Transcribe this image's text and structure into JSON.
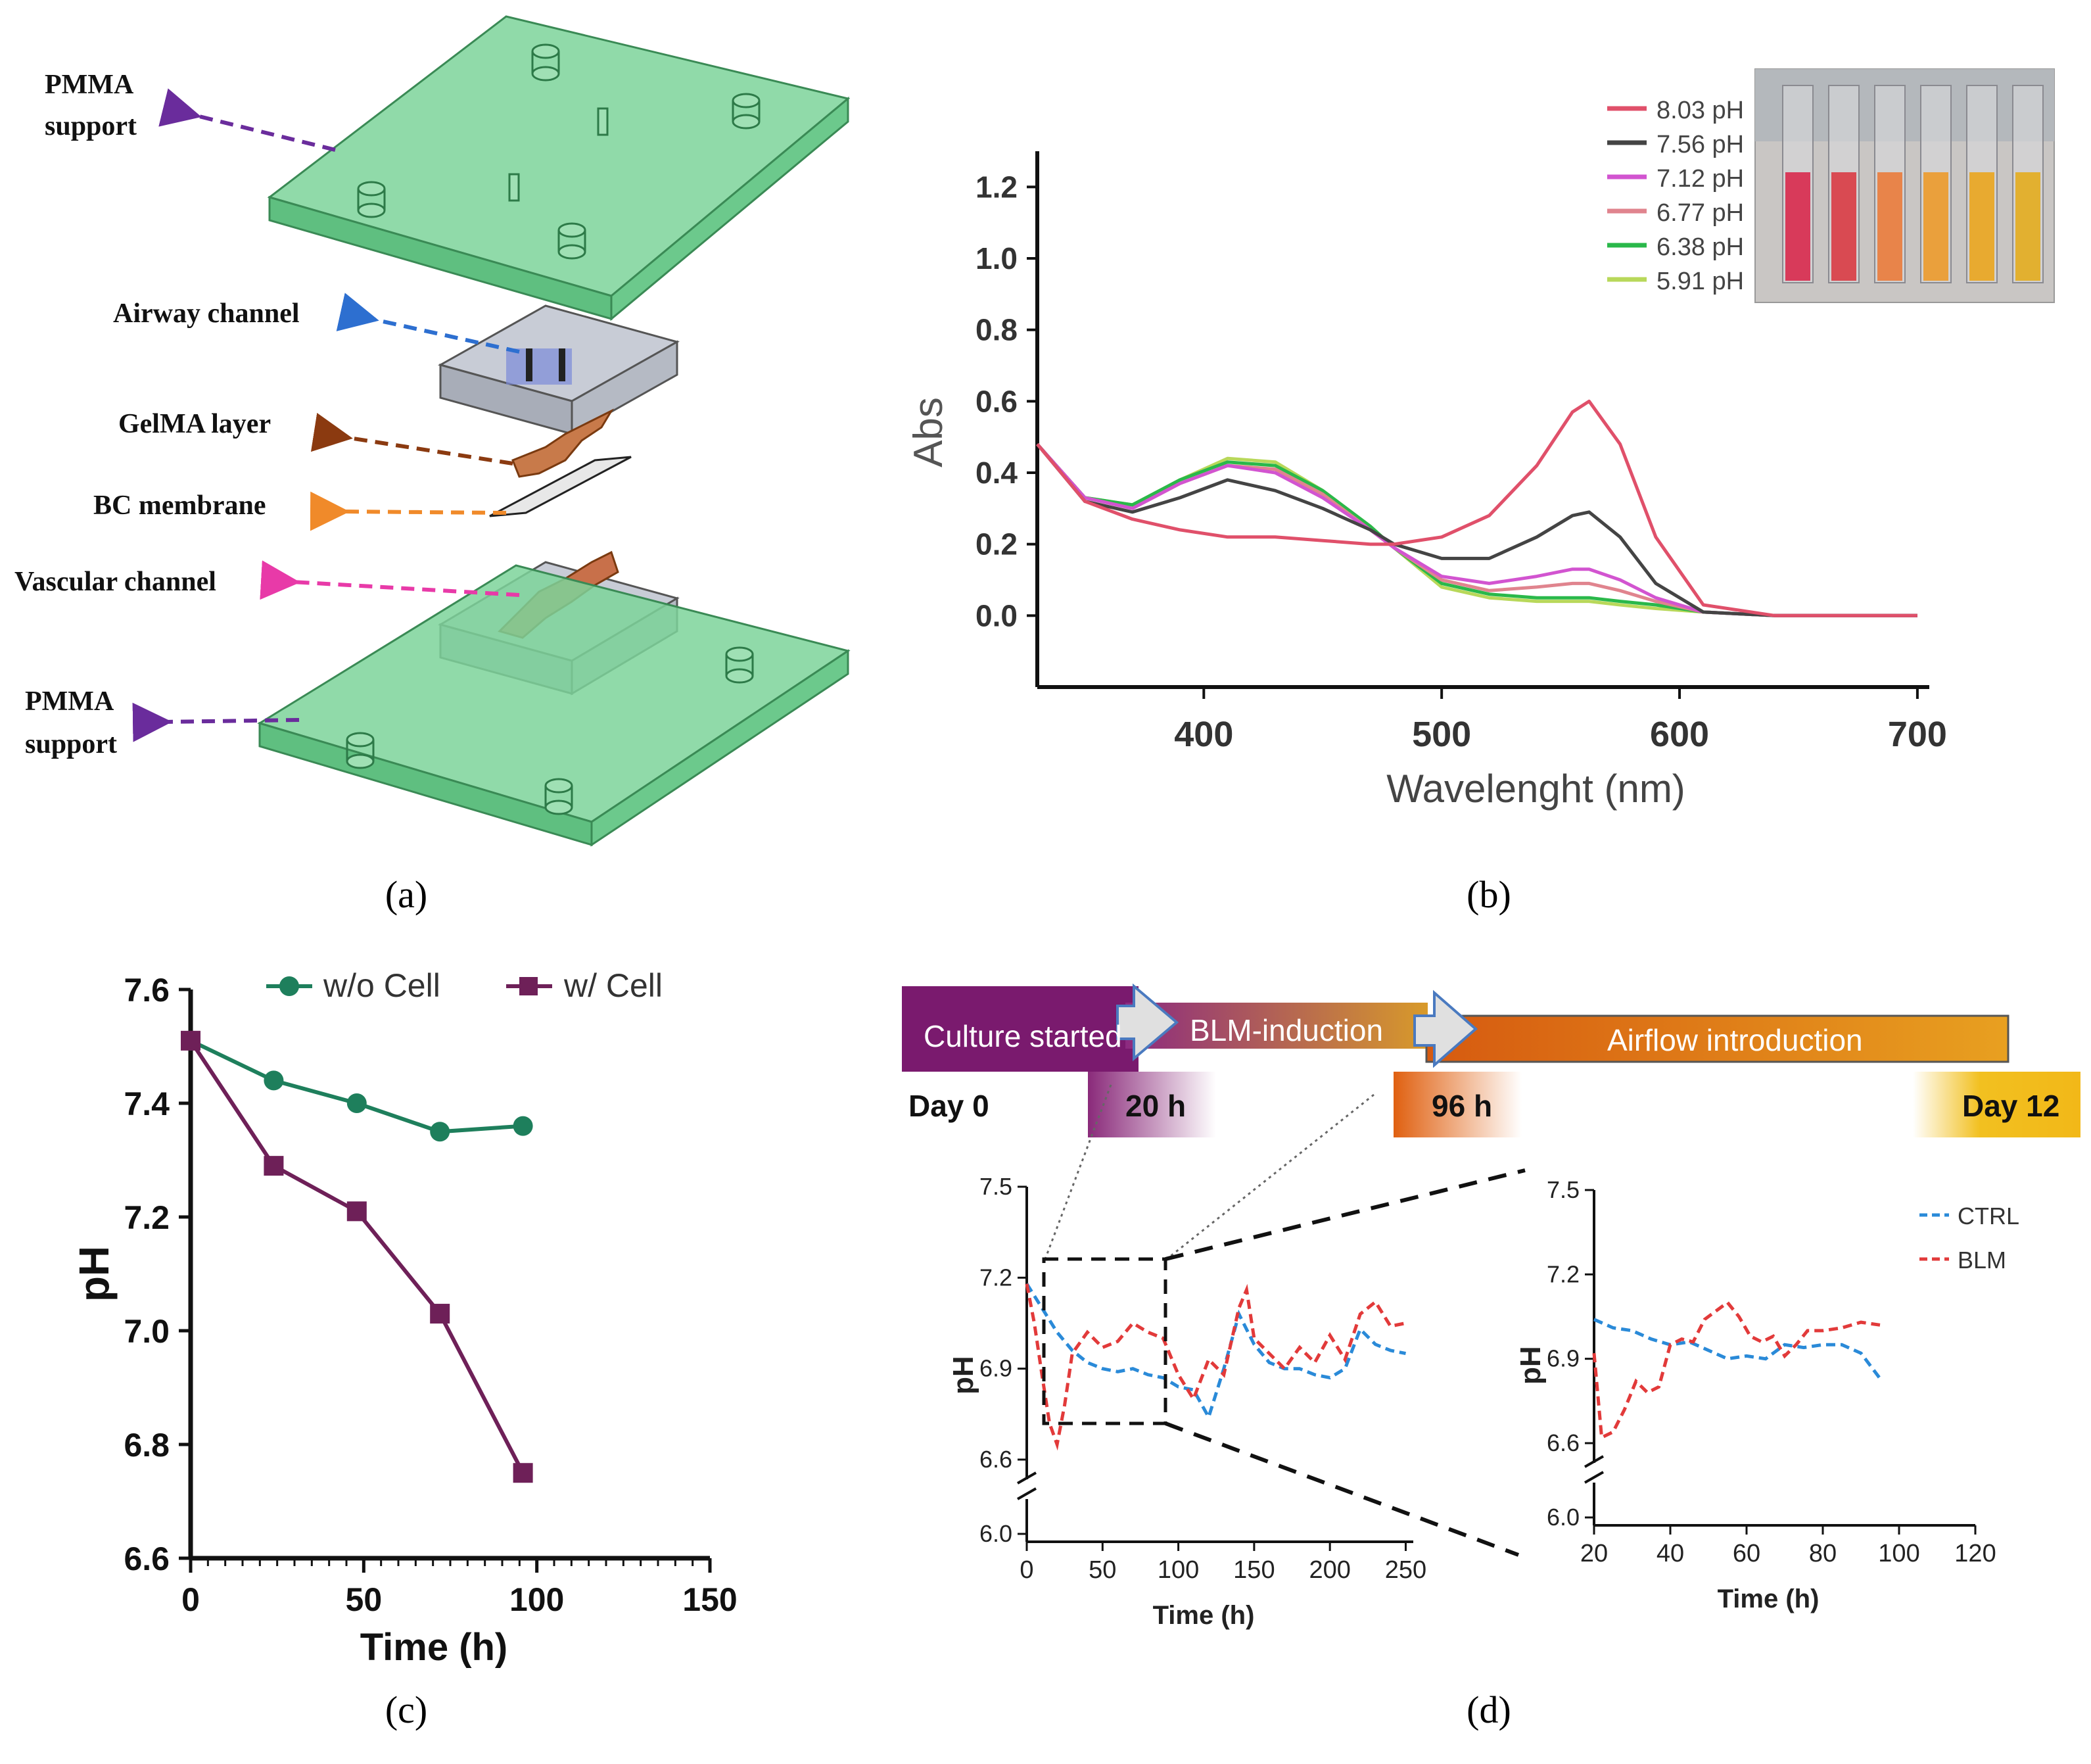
{
  "panel_a": {
    "caption": "(a)",
    "labels": {
      "pmma_top": [
        "PMMA",
        "support"
      ],
      "airway": "Airway  channel",
      "gelma": "GelMA layer",
      "bc": "BC membrane",
      "vascular": "Vascular channel",
      "pmma_bottom": [
        "PMMA",
        "support"
      ]
    },
    "colors": {
      "pmma": "#7dd39a",
      "pmma_arrow": "#6a2c9c",
      "airway_arrow": "#2d6fd0",
      "gelma_arrow": "#8b3a10",
      "bc_arrow": "#f08a2a",
      "vascular_arrow": "#e83aa8"
    }
  },
  "panel_b": {
    "caption": "(b)",
    "chart_data": {
      "type": "line",
      "xlabel": "Wavelenght (nm)",
      "ylabel": "Abs",
      "xlim": [
        330,
        705
      ],
      "ylim": [
        -0.2,
        1.3
      ],
      "xticks": [
        "400",
        "500",
        "600",
        "700"
      ],
      "xtick_values": [
        400,
        500,
        600,
        700
      ],
      "yticks": [
        "0.0",
        "0.2",
        "0.4",
        "0.6",
        "0.8",
        "1.0",
        "1.2"
      ],
      "ytick_values": [
        0.0,
        0.2,
        0.4,
        0.6,
        0.8,
        1.0,
        1.2
      ],
      "series": [
        {
          "name": "8.03 pH",
          "color": "#e0506a",
          "x": [
            330,
            350,
            370,
            390,
            410,
            430,
            450,
            470,
            480,
            500,
            520,
            540,
            555,
            562,
            575,
            590,
            610,
            640,
            700
          ],
          "y": [
            0.48,
            0.32,
            0.27,
            0.24,
            0.22,
            0.22,
            0.21,
            0.2,
            0.2,
            0.22,
            0.28,
            0.42,
            0.57,
            0.6,
            0.48,
            0.22,
            0.03,
            0.0,
            0.0
          ]
        },
        {
          "name": "7.56 pH",
          "color": "#444444",
          "x": [
            330,
            350,
            370,
            390,
            410,
            430,
            450,
            470,
            480,
            500,
            520,
            540,
            555,
            562,
            575,
            590,
            610,
            640,
            700
          ],
          "y": [
            0.48,
            0.32,
            0.29,
            0.33,
            0.38,
            0.35,
            0.3,
            0.24,
            0.2,
            0.16,
            0.16,
            0.22,
            0.28,
            0.29,
            0.22,
            0.09,
            0.01,
            0.0,
            0.0
          ]
        },
        {
          "name": "7.12 pH",
          "color": "#d254d0",
          "x": [
            330,
            350,
            370,
            390,
            410,
            430,
            450,
            470,
            480,
            500,
            520,
            540,
            555,
            562,
            575,
            590,
            610,
            640,
            700
          ],
          "y": [
            0.48,
            0.33,
            0.3,
            0.37,
            0.42,
            0.4,
            0.33,
            0.24,
            0.19,
            0.11,
            0.09,
            0.11,
            0.13,
            0.13,
            0.1,
            0.05,
            0.01,
            0.0,
            0.0
          ]
        },
        {
          "name": "6.77 pH",
          "color": "#e0848e",
          "x": [
            330,
            350,
            370,
            390,
            410,
            430,
            450,
            470,
            480,
            500,
            520,
            540,
            555,
            562,
            575,
            590,
            610,
            640,
            700
          ],
          "y": [
            0.48,
            0.33,
            0.3,
            0.37,
            0.42,
            0.41,
            0.34,
            0.24,
            0.19,
            0.1,
            0.07,
            0.08,
            0.09,
            0.09,
            0.07,
            0.04,
            0.01,
            0.0,
            0.0
          ]
        },
        {
          "name": "6.38 pH",
          "color": "#2ab84a",
          "x": [
            330,
            350,
            370,
            390,
            410,
            430,
            450,
            470,
            480,
            500,
            520,
            540,
            555,
            562,
            575,
            590,
            610,
            640,
            700
          ],
          "y": [
            0.48,
            0.33,
            0.31,
            0.38,
            0.43,
            0.42,
            0.35,
            0.25,
            0.19,
            0.09,
            0.06,
            0.05,
            0.05,
            0.05,
            0.04,
            0.03,
            0.01,
            0.0,
            0.0
          ]
        },
        {
          "name": "5.91 pH",
          "color": "#b8d85a",
          "x": [
            330,
            350,
            370,
            390,
            410,
            430,
            450,
            470,
            480,
            500,
            520,
            540,
            555,
            562,
            575,
            590,
            610,
            640,
            700
          ],
          "y": [
            0.48,
            0.33,
            0.31,
            0.38,
            0.44,
            0.43,
            0.35,
            0.25,
            0.19,
            0.08,
            0.05,
            0.04,
            0.04,
            0.04,
            0.03,
            0.02,
            0.01,
            0.0,
            0.0
          ]
        }
      ],
      "legend": "top-right",
      "inset_photo_tube_colors": [
        "#d83a5a",
        "#d94a52",
        "#e8844a",
        "#eaa03c",
        "#e8aa30",
        "#e2b030"
      ]
    }
  },
  "panel_c": {
    "caption": "(c)",
    "chart_data": {
      "type": "line",
      "xlabel": "Time (h)",
      "ylabel": "pH",
      "xlim": [
        0,
        150
      ],
      "ylim": [
        6.6,
        7.6
      ],
      "xticks": [
        "0",
        "50",
        "100",
        "150"
      ],
      "xtick_values": [
        0,
        50,
        100,
        150
      ],
      "yticks": [
        "6.6",
        "6.8",
        "7.0",
        "7.2",
        "7.4",
        "7.6"
      ],
      "ytick_values": [
        6.6,
        6.8,
        7.0,
        7.2,
        7.4,
        7.6
      ],
      "series": [
        {
          "name": "w/o Cell",
          "color": "#1e7f5c",
          "marker": "circle",
          "x": [
            0,
            24,
            48,
            72,
            96
          ],
          "y": [
            7.51,
            7.44,
            7.4,
            7.35,
            7.36
          ]
        },
        {
          "name": "w/ Cell",
          "color": "#6e2058",
          "marker": "square",
          "x": [
            0,
            24,
            48,
            72,
            96
          ],
          "y": [
            7.51,
            7.29,
            7.21,
            7.03,
            6.75
          ]
        }
      ],
      "legend": "top"
    }
  },
  "panel_d": {
    "caption": "(d)",
    "timeline": {
      "segments": [
        "Culture started",
        "BLM-induction",
        "Airflow introduction"
      ],
      "milestones": [
        "Day 0",
        "20 h",
        "96 h",
        "Day 12"
      ],
      "colors": {
        "culture": "#7a1a6e",
        "blm_start": "#8c2a80",
        "blm_end": "#d89a2a",
        "airflow_start": "#d65a10",
        "airflow_end": "#e8a020",
        "day12": "#f2c020"
      }
    },
    "chart_data": [
      {
        "type": "line",
        "xlabel": "Time (h)",
        "ylabel": "pH",
        "xlim": [
          0,
          255
        ],
        "yticks": [
          "6.0",
          "6.6",
          "6.9",
          "7.2",
          "7.5"
        ],
        "ytick_values": [
          6.0,
          6.6,
          6.9,
          7.2,
          7.5
        ],
        "xticks": [
          "0",
          "50",
          "100",
          "150",
          "200",
          "250"
        ],
        "xtick_values": [
          0,
          50,
          100,
          150,
          200,
          250
        ],
        "axis_break": true,
        "series": [
          {
            "name": "CTRL",
            "color": "#2a8ad8",
            "x": [
              0,
              10,
              20,
              30,
              40,
              50,
              60,
              70,
              80,
              90,
              100,
              110,
              120,
              130,
              140,
              150,
              160,
              170,
              180,
              190,
              200,
              210,
              220,
              230,
              240,
              250
            ],
            "y": [
              7.18,
              7.1,
              7.02,
              6.96,
              6.92,
              6.9,
              6.89,
              6.9,
              6.88,
              6.87,
              6.84,
              6.83,
              6.74,
              6.9,
              7.08,
              6.98,
              6.92,
              6.9,
              6.9,
              6.88,
              6.87,
              6.9,
              7.03,
              6.98,
              6.96,
              6.95
            ]
          },
          {
            "name": "BLM",
            "color": "#e23a3a",
            "x": [
              0,
              5,
              10,
              15,
              20,
              25,
              30,
              40,
              50,
              60,
              70,
              80,
              90,
              100,
              110,
              120,
              130,
              140,
              145,
              150,
              160,
              170,
              180,
              190,
              200,
              210,
              220,
              230,
              240,
              250
            ],
            "y": [
              7.18,
              7.05,
              6.88,
              6.72,
              6.65,
              6.78,
              6.95,
              7.02,
              6.97,
              6.99,
              7.05,
              7.02,
              7.0,
              6.88,
              6.8,
              6.93,
              6.88,
              7.1,
              7.16,
              7.0,
              6.95,
              6.9,
              6.97,
              6.92,
              7.01,
              6.93,
              7.08,
              7.12,
              7.04,
              7.05
            ]
          }
        ]
      },
      {
        "type": "line",
        "xlabel": "Time (h)",
        "ylabel": "pH",
        "xlim": [
          20,
          120
        ],
        "yticks": [
          "6.0",
          "6.6",
          "6.9",
          "7.2",
          "7.5"
        ],
        "ytick_values": [
          6.0,
          6.6,
          6.9,
          7.2,
          7.5
        ],
        "xticks": [
          "20",
          "40",
          "60",
          "80",
          "100",
          "120"
        ],
        "xtick_values": [
          20,
          40,
          60,
          80,
          100,
          120
        ],
        "axis_break": true,
        "legend": "top-right",
        "series": [
          {
            "name": "CTRL",
            "color": "#2a8ad8",
            "x": [
              20,
              25,
              30,
              35,
              40,
              45,
              50,
              55,
              60,
              65,
              70,
              75,
              80,
              85,
              90,
              95
            ],
            "y": [
              7.04,
              7.01,
              7.0,
              6.97,
              6.95,
              6.96,
              6.93,
              6.9,
              6.91,
              6.9,
              6.95,
              6.94,
              6.95,
              6.95,
              6.92,
              6.83
            ]
          },
          {
            "name": "BLM",
            "color": "#e23a3a",
            "x": [
              20,
              22,
              25,
              28,
              31,
              34,
              37,
              40,
              43,
              46,
              49,
              52,
              55,
              58,
              61,
              64,
              67,
              70,
              73,
              76,
              80,
              85,
              90,
              95
            ],
            "y": [
              6.92,
              6.62,
              6.64,
              6.72,
              6.82,
              6.78,
              6.8,
              6.95,
              6.97,
              6.96,
              7.04,
              7.07,
              7.1,
              7.05,
              6.98,
              6.96,
              6.98,
              6.91,
              6.95,
              7.0,
              7.0,
              7.01,
              7.03,
              7.02
            ]
          }
        ]
      }
    ]
  }
}
